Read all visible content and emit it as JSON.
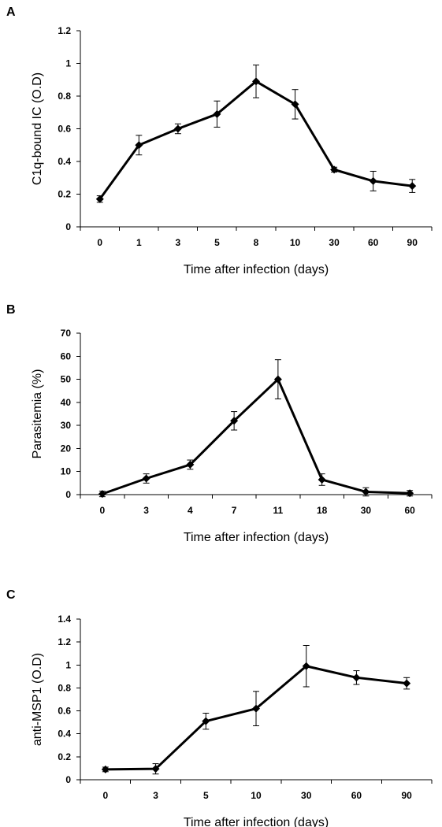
{
  "chart_data": [
    {
      "panel": "A",
      "type": "line",
      "categories": [
        "0",
        "1",
        "3",
        "5",
        "8",
        "10",
        "30",
        "60",
        "90"
      ],
      "values": [
        0.17,
        0.5,
        0.6,
        0.69,
        0.89,
        0.75,
        0.35,
        0.28,
        0.25
      ],
      "errors": [
        0.02,
        0.06,
        0.03,
        0.08,
        0.1,
        0.09,
        0.015,
        0.06,
        0.04
      ],
      "yticks": [
        "0",
        "0.2",
        "0.4",
        "0.6",
        "0.8",
        "1",
        "1.2"
      ],
      "ylim": [
        0,
        1.2
      ],
      "xlabel": "Time after infection (days)",
      "ylabel": "C1q-bound IC  (O.D)"
    },
    {
      "panel": "B",
      "type": "line",
      "categories": [
        "0",
        "3",
        "4",
        "7",
        "11",
        "18",
        "30",
        "60"
      ],
      "values": [
        0.3,
        7,
        13,
        32,
        50,
        6.5,
        1.2,
        0.6
      ],
      "errors": [
        1.2,
        2,
        2,
        4,
        8.5,
        2.5,
        1.8,
        1.2
      ],
      "yticks": [
        "0",
        "10",
        "20",
        "30",
        "40",
        "50",
        "60",
        "70"
      ],
      "ylim": [
        0,
        70
      ],
      "xlabel": "Time after infection (days)",
      "ylabel": "Parasitemia  (%)"
    },
    {
      "panel": "C",
      "type": "line",
      "categories": [
        "0",
        "3",
        "5",
        "10",
        "30",
        "60",
        "90"
      ],
      "values": [
        0.09,
        0.095,
        0.51,
        0.62,
        0.99,
        0.89,
        0.84
      ],
      "errors": [
        0.02,
        0.045,
        0.07,
        0.15,
        0.18,
        0.06,
        0.05
      ],
      "yticks": [
        "0",
        "0.2",
        "0.4",
        "0.6",
        "0.8",
        "1",
        "1.2",
        "1.4"
      ],
      "ylim": [
        0,
        1.4
      ],
      "xlabel": "Time after infection (days)",
      "ylabel": "anti-MSP1  (O.D)"
    }
  ]
}
